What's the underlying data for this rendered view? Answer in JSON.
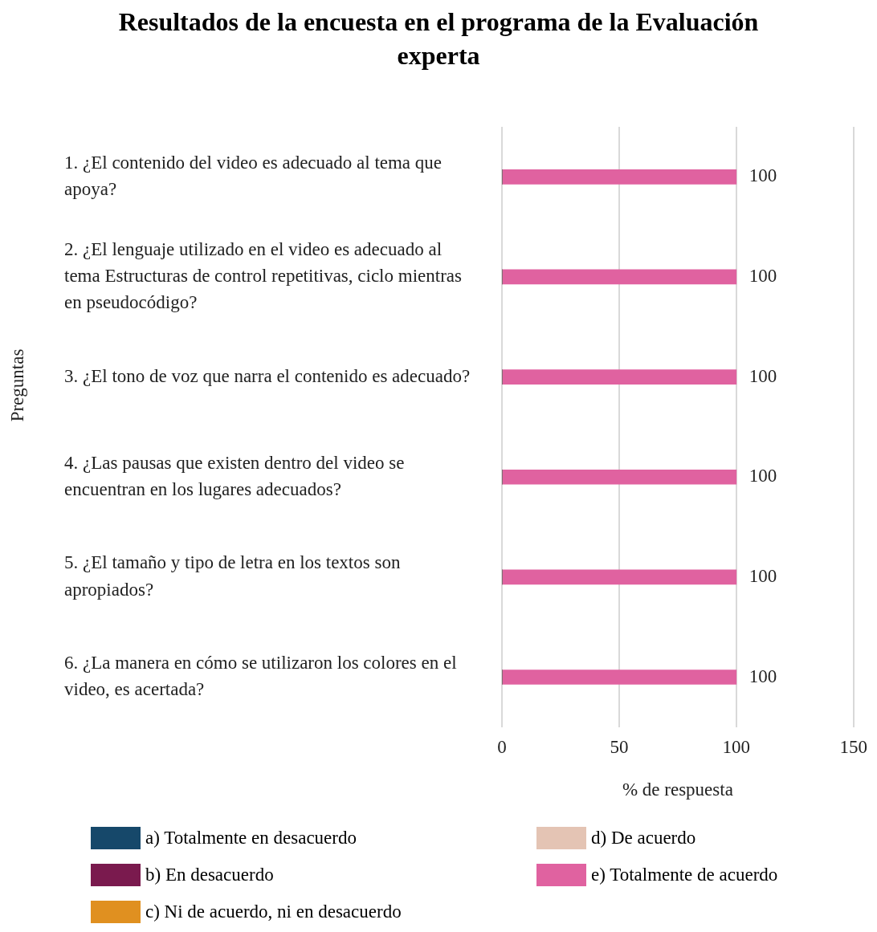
{
  "chart_data": {
    "type": "bar",
    "orientation": "horizontal",
    "stacked": true,
    "title": "Resultados de la encuesta en el programa de la Evaluación experta",
    "xlabel": "% de respuesta",
    "ylabel": "Preguntas",
    "categories": [
      "1. ¿El contenido del video es adecuado al tema que apoya?",
      "2. ¿El lenguaje utilizado en el video es adecuado al tema Estructuras de control repetitivas, ciclo mientras en pseudocódigo?",
      "3. ¿El tono de voz que narra el contenido es adecuado?",
      "4. ¿Las pausas que existen dentro del video se encuentran en los lugares adecuados?",
      "5. ¿El tamaño y tipo de letra en los textos son apropiados?",
      "6. ¿La manera en cómo se utilizaron los colores en el video, es acertada?"
    ],
    "series": [
      {
        "name": "a) Totalmente en desacuerdo",
        "color": "#16486a",
        "values": [
          0,
          0,
          0,
          0,
          0,
          0
        ]
      },
      {
        "name": "b) En desacuerdo",
        "color": "#7a1a4e",
        "values": [
          0,
          0,
          0,
          0,
          0,
          0
        ]
      },
      {
        "name": "c) Ni de acuerdo, ni en desacuerdo",
        "color": "#e09020",
        "values": [
          0,
          0,
          0,
          0,
          0,
          0
        ]
      },
      {
        "name": "d) De acuerdo",
        "color": "#e4c4b4",
        "values": [
          0,
          0,
          0,
          0,
          0,
          0
        ]
      },
      {
        "name": "e) Totalmente de acuerdo",
        "color": "#e062a0",
        "values": [
          100,
          100,
          100,
          100,
          100,
          100
        ],
        "value_labels": [
          "100",
          "100",
          "100",
          "100",
          "100",
          "100"
        ]
      }
    ],
    "xlim": [
      0,
      150
    ],
    "xticks": [
      0,
      50,
      100,
      150
    ],
    "grid": "x",
    "legend": "bottom"
  }
}
